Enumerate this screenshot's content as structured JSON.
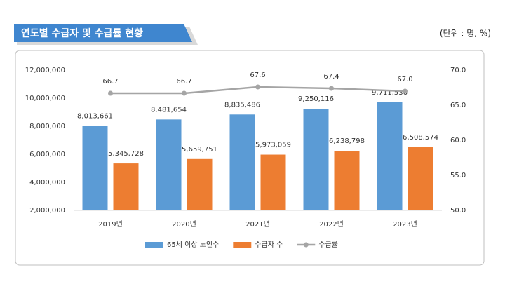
{
  "header": {
    "title": "연도별 수급자 및 수급률 현황",
    "unit": "(단위 : 명, %)"
  },
  "chart_data": {
    "type": "bar",
    "categories": [
      "2019년",
      "2020년",
      "2021년",
      "2022년",
      "2023년"
    ],
    "series": [
      {
        "name": "65세 이상 노인수",
        "type": "bar",
        "color": "#5b9bd5",
        "axis": "y",
        "values": [
          8013661,
          8481654,
          8835486,
          9250116,
          9711536
        ],
        "value_labels": [
          "8,013,661",
          "8,481,654",
          "8,835,486",
          "9,250,116",
          "9,711,536"
        ]
      },
      {
        "name": "수급자 수",
        "type": "bar",
        "color": "#ed7d31",
        "axis": "y",
        "values": [
          5345728,
          5659751,
          5973059,
          6238798,
          6508574
        ],
        "value_labels": [
          "5,345,728",
          "5,659,751",
          "5,973,059",
          "6,238,798",
          "6,508,574"
        ]
      },
      {
        "name": "수급률",
        "type": "line",
        "color": "#a5a5a5",
        "axis": "y2",
        "values": [
          66.7,
          66.7,
          67.6,
          67.4,
          67.0
        ],
        "value_labels": [
          "66.7",
          "66.7",
          "67.6",
          "67.4",
          "67.0"
        ]
      }
    ],
    "ylim": [
      2000000,
      12000000
    ],
    "yticks": [
      {
        "value": 2000000,
        "label": "2,000,000"
      },
      {
        "value": 4000000,
        "label": "4,000,000"
      },
      {
        "value": 6000000,
        "label": "6,000,000"
      },
      {
        "value": 8000000,
        "label": "8,000,000"
      },
      {
        "value": 10000000,
        "label": "10,000,000"
      },
      {
        "value": 12000000,
        "label": "12,000,000"
      }
    ],
    "y2lim": [
      50,
      70
    ],
    "y2ticks": [
      {
        "value": 50,
        "label": "50.0"
      },
      {
        "value": 55,
        "label": "55.0"
      },
      {
        "value": 60,
        "label": "60.0"
      },
      {
        "value": 65,
        "label": "65.0"
      },
      {
        "value": 70,
        "label": "70.0"
      }
    ],
    "legend": "bottom"
  }
}
